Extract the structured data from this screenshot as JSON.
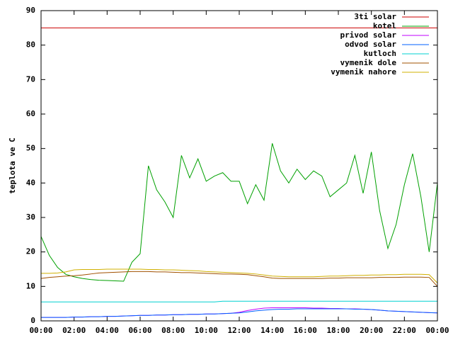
{
  "chart_data": {
    "type": "line",
    "ylabel": "teplota ve C",
    "x": [
      0,
      0.5,
      1,
      1.5,
      2,
      2.5,
      3,
      3.5,
      4,
      4.5,
      5,
      5.5,
      6,
      6.5,
      7,
      7.5,
      8,
      8.5,
      9,
      9.5,
      10,
      10.5,
      11,
      11.5,
      12,
      12.5,
      13,
      13.5,
      14,
      14.5,
      15,
      15.5,
      16,
      16.5,
      17,
      17.5,
      18,
      18.5,
      19,
      19.5,
      20,
      20.5,
      21,
      21.5,
      22,
      22.5,
      23,
      23.5,
      24
    ],
    "xlim": [
      0,
      24
    ],
    "xticks": [
      {
        "value": 0,
        "label": "00:00"
      },
      {
        "value": 2,
        "label": "02:00"
      },
      {
        "value": 4,
        "label": "04:00"
      },
      {
        "value": 6,
        "label": "06:00"
      },
      {
        "value": 8,
        "label": "08:00"
      },
      {
        "value": 10,
        "label": "10:00"
      },
      {
        "value": 12,
        "label": "12:00"
      },
      {
        "value": 14,
        "label": "14:00"
      },
      {
        "value": 16,
        "label": "16:00"
      },
      {
        "value": 18,
        "label": "18:00"
      },
      {
        "value": 20,
        "label": "20:00"
      },
      {
        "value": 22,
        "label": "22:00"
      },
      {
        "value": 24,
        "label": "00:00"
      }
    ],
    "ylim": [
      0,
      90
    ],
    "yticks": [
      0,
      10,
      20,
      30,
      40,
      50,
      60,
      70,
      80,
      90
    ],
    "legend": "top-right",
    "series": [
      {
        "name": "3ti solar",
        "color": "#cc0000",
        "values": [
          85,
          85,
          85,
          85,
          85,
          85,
          85,
          85,
          85,
          85,
          85,
          85,
          85,
          85,
          85,
          85,
          85,
          85,
          85,
          85,
          85,
          85,
          85,
          85,
          85,
          85,
          85,
          85,
          85,
          85,
          85,
          85,
          85,
          85,
          85,
          85,
          85,
          85,
          85,
          85,
          85,
          85,
          85,
          85,
          85,
          85,
          85,
          85,
          85
        ]
      },
      {
        "name": "kotel",
        "color": "#00a000",
        "values": [
          24.5,
          19,
          15.5,
          13.5,
          12.8,
          12.3,
          12,
          11.8,
          11.7,
          11.6,
          11.5,
          17,
          19.5,
          45,
          38,
          34.5,
          30,
          48,
          41.5,
          47,
          40.5,
          42,
          43,
          40.5,
          40.5,
          34,
          39.5,
          35,
          51.5,
          43.5,
          40,
          44,
          41,
          43.5,
          42,
          36,
          38,
          40,
          48,
          37,
          49,
          32,
          21,
          28,
          39.5,
          48.5,
          36,
          20,
          40
        ]
      },
      {
        "name": "privod solar",
        "color": "#c000ff",
        "values": [
          1.0,
          1.0,
          1.0,
          1.0,
          1.1,
          1.1,
          1.2,
          1.2,
          1.3,
          1.3,
          1.4,
          1.5,
          1.6,
          1.6,
          1.7,
          1.7,
          1.8,
          1.8,
          1.9,
          1.9,
          2.0,
          2.0,
          2.1,
          2.2,
          2.5,
          3.0,
          3.4,
          3.7,
          3.8,
          3.8,
          3.8,
          3.8,
          3.8,
          3.7,
          3.7,
          3.6,
          3.6,
          3.5,
          3.5,
          3.4,
          3.3,
          3.1,
          2.9,
          2.8,
          2.7,
          2.6,
          2.5,
          2.4,
          2.3
        ]
      },
      {
        "name": "odvod solar",
        "color": "#0060ff",
        "values": [
          1.0,
          1.0,
          1.0,
          1.0,
          1.1,
          1.1,
          1.2,
          1.2,
          1.3,
          1.3,
          1.4,
          1.5,
          1.6,
          1.6,
          1.7,
          1.7,
          1.8,
          1.8,
          1.9,
          1.9,
          2.0,
          2.0,
          2.1,
          2.2,
          2.3,
          2.6,
          2.9,
          3.1,
          3.3,
          3.4,
          3.4,
          3.5,
          3.5,
          3.5,
          3.5,
          3.5,
          3.5,
          3.5,
          3.4,
          3.4,
          3.3,
          3.1,
          2.9,
          2.8,
          2.7,
          2.6,
          2.5,
          2.4,
          2.3
        ]
      },
      {
        "name": "kutloch",
        "color": "#00d0d0",
        "values": [
          5.5,
          5.5,
          5.5,
          5.5,
          5.5,
          5.5,
          5.5,
          5.5,
          5.5,
          5.5,
          5.5,
          5.5,
          5.5,
          5.5,
          5.5,
          5.5,
          5.5,
          5.5,
          5.5,
          5.5,
          5.5,
          5.5,
          5.7,
          5.7,
          5.7,
          5.7,
          5.7,
          5.7,
          5.7,
          5.7,
          5.7,
          5.7,
          5.7,
          5.7,
          5.7,
          5.7,
          5.7,
          5.7,
          5.7,
          5.7,
          5.7,
          5.7,
          5.7,
          5.7,
          5.7,
          5.7,
          5.7,
          5.7,
          5.7
        ]
      },
      {
        "name": "vymenik dole",
        "color": "#a05000",
        "values": [
          12.3,
          12.6,
          12.8,
          13.0,
          13.1,
          13.3,
          13.6,
          13.9,
          14.0,
          14.1,
          14.2,
          14.3,
          14.3,
          14.3,
          14.2,
          14.2,
          14.1,
          14.0,
          14.0,
          13.9,
          13.8,
          13.7,
          13.6,
          13.6,
          13.5,
          13.4,
          13.1,
          12.8,
          12.4,
          12.3,
          12.3,
          12.3,
          12.3,
          12.3,
          12.3,
          12.4,
          12.4,
          12.5,
          12.5,
          12.5,
          12.5,
          12.6,
          12.6,
          12.6,
          12.7,
          12.7,
          12.7,
          12.6,
          10.0
        ]
      },
      {
        "name": "vymenik nahore",
        "color": "#d0b000",
        "values": [
          13.8,
          13.8,
          13.9,
          14.2,
          14.8,
          14.9,
          14.9,
          14.9,
          15.0,
          15.0,
          15.0,
          15.0,
          15.0,
          14.9,
          14.9,
          14.8,
          14.8,
          14.7,
          14.6,
          14.5,
          14.3,
          14.2,
          14.1,
          14.0,
          13.9,
          13.8,
          13.6,
          13.3,
          13.0,
          12.9,
          12.8,
          12.8,
          12.8,
          12.8,
          12.9,
          13.0,
          13.0,
          13.1,
          13.2,
          13.2,
          13.3,
          13.3,
          13.4,
          13.4,
          13.5,
          13.5,
          13.5,
          13.4,
          11.0
        ]
      }
    ]
  }
}
